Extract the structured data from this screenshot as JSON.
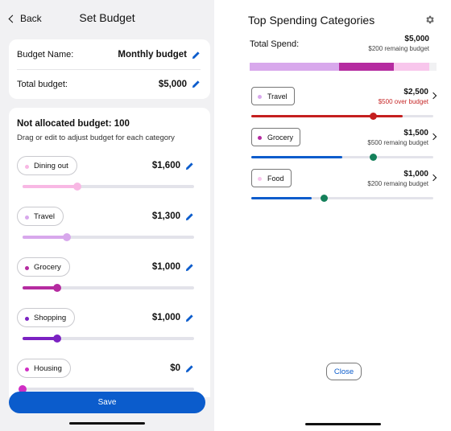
{
  "colors": {
    "accent": "#0b5ccc",
    "over": "#c62828",
    "dining_out": "#f8b8e4",
    "travel": "#d8a8ec",
    "grocery": "#b52ba0",
    "shopping": "#7b22c2",
    "housing": "#d02ec4",
    "r_travel_bar": "#c51f1f",
    "r_grocery_bar": "#0b5ccc",
    "r_food_bar": "#0b5ccc",
    "r_knob": "#14805a"
  },
  "left": {
    "back_label": "Back",
    "title": "Set Budget",
    "budget_name_label": "Budget Name:",
    "budget_name_value": "Monthly budget",
    "total_budget_label": "Total budget:",
    "total_budget_value": "$5,000",
    "not_allocated": "Not allocated budget: 100",
    "hint": "Drag or edit to adjust budget for each category",
    "categories": [
      {
        "name": "Dining out",
        "amount": "$1,600",
        "fraction": 0.32
      },
      {
        "name": "Travel",
        "amount": "$1,300",
        "fraction": 0.26
      },
      {
        "name": "Grocery",
        "amount": "$1,000",
        "fraction": 0.2
      },
      {
        "name": "Shopping",
        "amount": "$1,000",
        "fraction": 0.2
      },
      {
        "name": "Housing",
        "amount": "$0",
        "fraction": 0
      }
    ],
    "save_label": "Save"
  },
  "right": {
    "title": "Top Spending Categories",
    "total_spend_label": "Total Spend:",
    "total_spend_value": "$5,000",
    "total_spend_sub": "$200 remaing budget",
    "stack_fractions": [
      0.48,
      0.29,
      0.19,
      0.04
    ],
    "categories": [
      {
        "name": "Travel",
        "amount": "$2,500",
        "sub": "$500 over budget",
        "over": true,
        "fill_fraction": 0.83,
        "knob_fraction": 0.67
      },
      {
        "name": "Grocery",
        "amount": "$1,500",
        "sub": "$500 remaing budget",
        "over": false,
        "fill_fraction": 0.5,
        "knob_fraction": 0.67
      },
      {
        "name": "Food",
        "amount": "$1,000",
        "sub": "$200 remaing budget",
        "over": false,
        "fill_fraction": 0.33,
        "knob_fraction": 0.4
      }
    ],
    "close_label": "Close"
  }
}
